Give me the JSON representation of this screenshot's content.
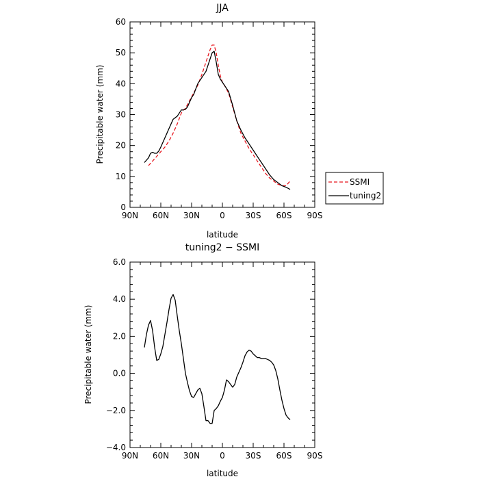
{
  "chart_data": [
    {
      "type": "line",
      "title": "JJA",
      "xlabel": "latitude",
      "ylabel": "Precipitable water (mm)",
      "xlim": [
        90,
        -90
      ],
      "ylim": [
        0,
        60
      ],
      "x_ticks": [
        90,
        60,
        30,
        0,
        -30,
        -60,
        -90
      ],
      "x_tick_labels": [
        "90N",
        "60N",
        "30N",
        "0",
        "30S",
        "60S",
        "90S"
      ],
      "y_ticks": [
        0,
        10,
        20,
        30,
        40,
        50,
        60
      ],
      "y_tick_labels": [
        "0",
        "10",
        "20",
        "30",
        "40",
        "50",
        "60"
      ],
      "legend_position": "outside-right",
      "series": [
        {
          "name": "SSMI",
          "color": "#e8141c",
          "dash": "dashed",
          "x": [
            72,
            68,
            64,
            60,
            56,
            52,
            48,
            44,
            40,
            38,
            36,
            32,
            28,
            24,
            20,
            16,
            12,
            10,
            8,
            6,
            4,
            2,
            0,
            -2,
            -6,
            -10,
            -14,
            -18,
            -22,
            -26,
            -30,
            -34,
            -38,
            -42,
            -46,
            -50,
            -54,
            -58,
            -62,
            -66
          ],
          "y": [
            13.5,
            15,
            16.5,
            18,
            19.5,
            21.5,
            24,
            27,
            30.5,
            31.5,
            32,
            34.5,
            37,
            39.5,
            43,
            47,
            51,
            52.5,
            52.5,
            50,
            46,
            42.5,
            40.5,
            39.5,
            37,
            32.5,
            28,
            24,
            21.5,
            19,
            17,
            15,
            13,
            11,
            9.5,
            8.5,
            7.5,
            7,
            7,
            8.5
          ]
        },
        {
          "name": "tuning2",
          "color": "#000000",
          "dash": "solid",
          "x": [
            76,
            72,
            70,
            68,
            66,
            64,
            62,
            60,
            56,
            52,
            48,
            44,
            40,
            38,
            36,
            34,
            32,
            30,
            28,
            24,
            22,
            20,
            16,
            12,
            10,
            8,
            6,
            4,
            2,
            0,
            -2,
            -6,
            -10,
            -14,
            -18,
            -22,
            -26,
            -30,
            -34,
            -38,
            -42,
            -46,
            -50,
            -54,
            -58,
            -62,
            -66
          ],
          "y": [
            14.5,
            16,
            17.5,
            17.8,
            17.5,
            17.5,
            18.2,
            19.5,
            22.5,
            25.5,
            28.5,
            29.5,
            31.5,
            31.5,
            31.7,
            32.5,
            34,
            35.5,
            36.5,
            40,
            41,
            42,
            44,
            48,
            50,
            50.5,
            47,
            43,
            41.5,
            40.5,
            39.5,
            37.5,
            33,
            28,
            25,
            22.5,
            20.5,
            18.5,
            16.5,
            14.5,
            12.5,
            10.5,
            9,
            8,
            7,
            6.5,
            5.8
          ]
        }
      ]
    },
    {
      "type": "line",
      "title": "tuning2 − SSMI",
      "xlabel": "latitude",
      "ylabel": "Precipitable water (mm)",
      "xlim": [
        90,
        -90
      ],
      "ylim": [
        -4,
        6
      ],
      "x_ticks": [
        90,
        60,
        30,
        0,
        -30,
        -60,
        -90
      ],
      "x_tick_labels": [
        "90N",
        "60N",
        "30N",
        "0",
        "30S",
        "60S",
        "90S"
      ],
      "y_ticks": [
        -4,
        -2,
        0,
        2,
        4,
        6
      ],
      "y_tick_labels": [
        "−4.0",
        "−2.0",
        "0.0",
        "2.0",
        "4.0",
        "6.0"
      ],
      "series": [
        {
          "color": "#000000",
          "dash": "solid",
          "x": [
            76,
            74,
            72,
            70,
            68,
            66,
            64,
            62,
            60,
            58,
            56,
            54,
            52,
            50,
            48,
            46,
            44,
            42,
            40,
            38,
            36,
            34,
            32,
            30,
            28,
            26,
            24,
            22,
            20,
            18,
            16,
            14,
            12,
            10,
            8,
            6,
            4,
            2,
            0,
            -2,
            -4,
            -6,
            -8,
            -10,
            -12,
            -14,
            -16,
            -18,
            -20,
            -22,
            -24,
            -26,
            -28,
            -30,
            -32,
            -34,
            -36,
            -38,
            -40,
            -42,
            -44,
            -46,
            -48,
            -50,
            -52,
            -54,
            -56,
            -58,
            -60,
            -62,
            -64,
            -66
          ],
          "y": [
            1.4,
            2.1,
            2.6,
            2.85,
            2.3,
            1.4,
            0.7,
            0.75,
            1.05,
            1.45,
            2.1,
            2.75,
            3.45,
            4.05,
            4.25,
            3.95,
            3.1,
            2.3,
            1.6,
            0.8,
            0,
            -0.5,
            -0.95,
            -1.25,
            -1.3,
            -1.1,
            -0.9,
            -0.8,
            -1.1,
            -1.8,
            -2.55,
            -2.55,
            -2.7,
            -2.7,
            -2.0,
            -1.9,
            -1.75,
            -1.5,
            -1.3,
            -0.9,
            -0.35,
            -0.45,
            -0.6,
            -0.75,
            -0.6,
            -0.2,
            0.05,
            0.3,
            0.6,
            0.95,
            1.15,
            1.25,
            1.2,
            1.05,
            0.95,
            0.85,
            0.85,
            0.8,
            0.8,
            0.8,
            0.75,
            0.7,
            0.6,
            0.45,
            0.15,
            -0.3,
            -0.9,
            -1.45,
            -1.9,
            -2.25,
            -2.4,
            -2.5
          ]
        }
      ]
    }
  ]
}
